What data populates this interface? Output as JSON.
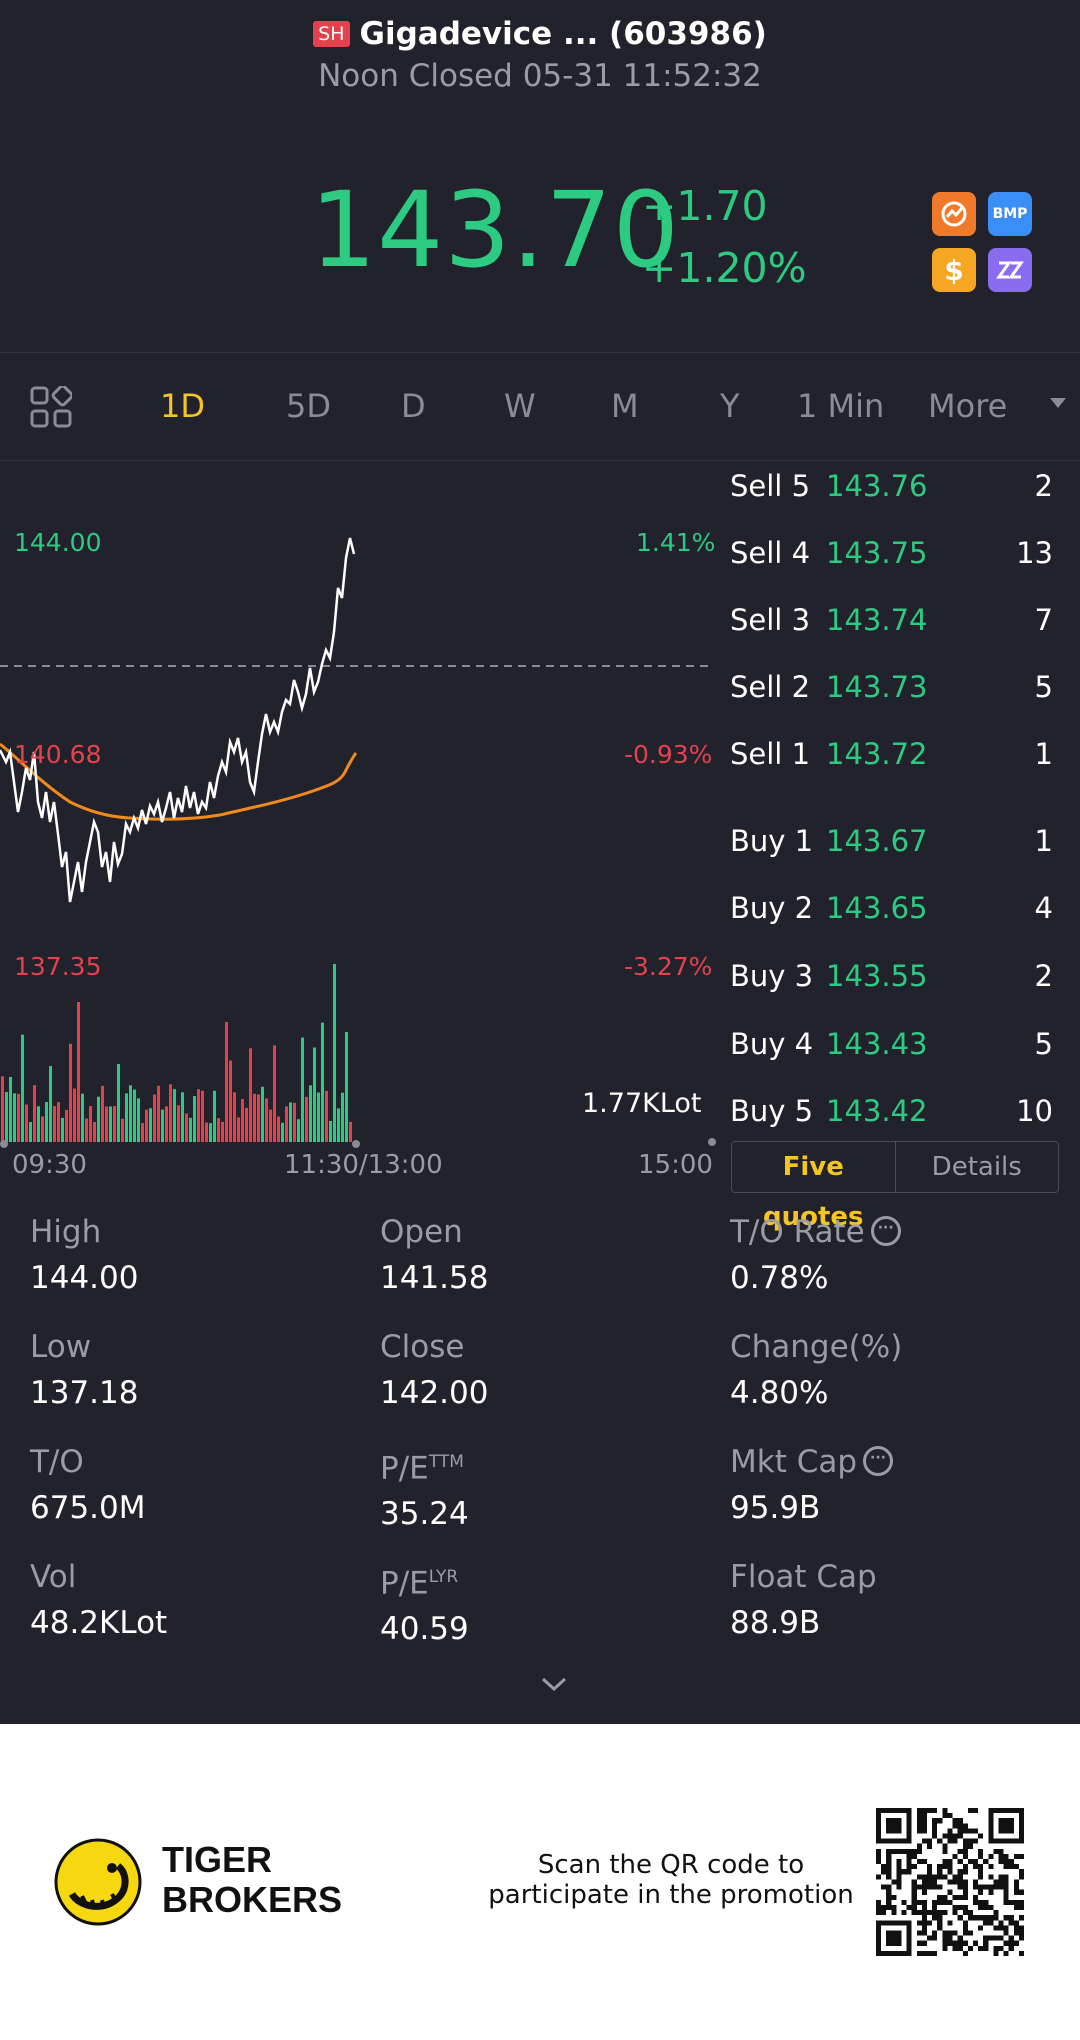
{
  "header": {
    "exchange": "SH",
    "title": "Gigadevice ... (603986)",
    "status": "Noon Closed 05-31 11:52:32",
    "price": "143.70",
    "change": "+1.70",
    "change_pct": "+1.20%",
    "price_color": "#2dcb82",
    "badges": [
      "chart-badge-icon",
      "BMP",
      "dollar-icon",
      "zz-icon"
    ]
  },
  "tabs": [
    "1D",
    "5D",
    "D",
    "W",
    "M",
    "Y",
    "1 Min",
    "More"
  ],
  "active_tab": "1D",
  "chart": {
    "y_high": "144.00",
    "y_high_pct": "1.41%",
    "y_mid": "140.68",
    "y_mid_pct": "-0.93%",
    "y_low": "137.35",
    "y_low_pct": "-3.27%",
    "volume_label": "1.77KLot",
    "time_start": "09:30",
    "time_mid": "11:30/13:00",
    "time_end": "15:00"
  },
  "orderbook": {
    "sells": [
      {
        "label": "Sell 5",
        "price": "143.76",
        "qty": "2"
      },
      {
        "label": "Sell 4",
        "price": "143.75",
        "qty": "13"
      },
      {
        "label": "Sell 3",
        "price": "143.74",
        "qty": "7"
      },
      {
        "label": "Sell 2",
        "price": "143.73",
        "qty": "5"
      },
      {
        "label": "Sell 1",
        "price": "143.72",
        "qty": "1"
      }
    ],
    "buys": [
      {
        "label": "Buy 1",
        "price": "143.67",
        "qty": "1"
      },
      {
        "label": "Buy 2",
        "price": "143.65",
        "qty": "4"
      },
      {
        "label": "Buy 3",
        "price": "143.55",
        "qty": "2"
      },
      {
        "label": "Buy 4",
        "price": "143.43",
        "qty": "5"
      },
      {
        "label": "Buy 5",
        "price": "143.42",
        "qty": "10"
      }
    ],
    "tab_five": "Five quotes",
    "tab_details": "Details"
  },
  "stats": {
    "high_k": "High",
    "high_v": "144.00",
    "open_k": "Open",
    "open_v": "141.58",
    "to_rate_k": "T/O Rate",
    "to_rate_v": "0.78%",
    "low_k": "Low",
    "low_v": "137.18",
    "close_k": "Close",
    "close_v": "142.00",
    "change_k": "Change(%)",
    "change_v": "4.80%",
    "to_k": "T/O",
    "to_v": "675.0M",
    "pe_ttm_k": "P/E",
    "pe_ttm_sup": "TTM",
    "pe_ttm_v": "35.24",
    "mktcap_k": "Mkt Cap",
    "mktcap_v": "95.9B",
    "vol_k": "Vol",
    "vol_v": "48.2KLot",
    "pe_lyr_k": "P/E",
    "pe_lyr_sup": "LYR",
    "pe_lyr_v": "40.59",
    "floatcap_k": "Float Cap",
    "floatcap_v": "88.9B"
  },
  "footer": {
    "brand_line1": "TIGER",
    "brand_line2": "BROKERS",
    "promo_line1": "Scan the QR code to",
    "promo_line2": "participate in the promotion"
  }
}
